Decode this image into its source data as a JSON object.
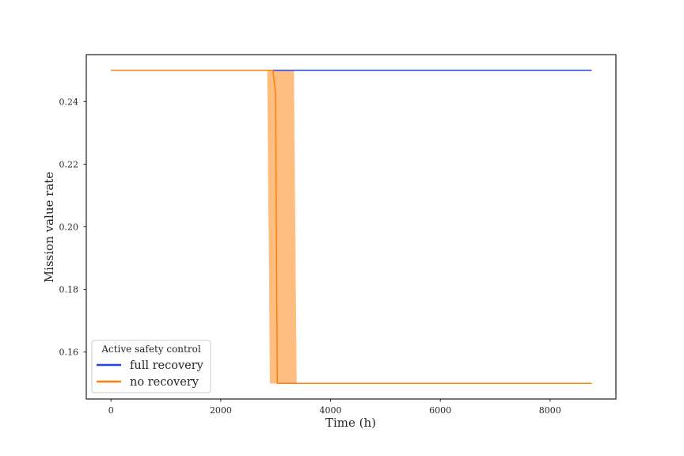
{
  "chart_data": {
    "type": "line",
    "title": "",
    "xlabel": "Time (h)",
    "ylabel": "Mission value rate",
    "xlim": [
      -450,
      9200
    ],
    "ylim": [
      0.145,
      0.255
    ],
    "xticks": [
      0,
      2000,
      4000,
      6000,
      8000
    ],
    "xtick_labels": [
      "0",
      "2000",
      "4000",
      "6000",
      "8000"
    ],
    "yticks": [
      0.16,
      0.18,
      0.2,
      0.22,
      0.24
    ],
    "ytick_labels": [
      "0.16",
      "0.18",
      "0.20",
      "0.22",
      "0.24"
    ],
    "grid": false,
    "legend": {
      "title": "Active safety control",
      "placement": "lower-left"
    },
    "series": [
      {
        "name": "full recovery",
        "color": "#1f45e0",
        "x": [
          0,
          8760
        ],
        "y": [
          0.25,
          0.25
        ]
      },
      {
        "name": "no recovery",
        "color": "#ff7f0e",
        "x": [
          0,
          2950,
          3000,
          3030,
          8760
        ],
        "y": [
          0.25,
          0.25,
          0.242,
          0.15,
          0.15
        ],
        "band": {
          "color": "#ffbe80",
          "x": [
            0,
            2850,
            2900,
            3330,
            3380,
            8760
          ],
          "lower": [
            0.25,
            0.25,
            0.15,
            0.15,
            0.15,
            0.15
          ],
          "upper": [
            0.25,
            0.25,
            0.25,
            0.25,
            0.15,
            0.15
          ]
        }
      }
    ]
  }
}
